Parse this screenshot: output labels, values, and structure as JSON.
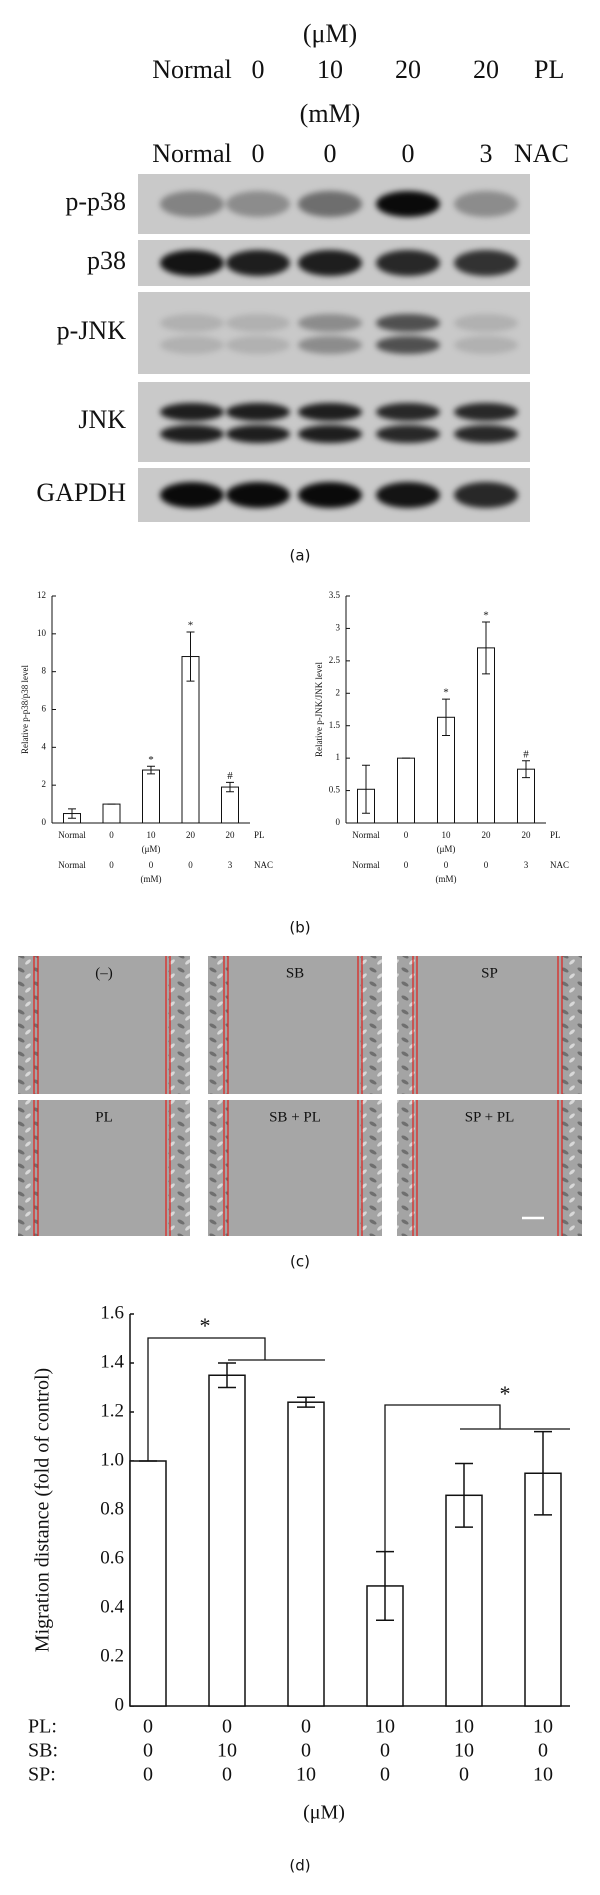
{
  "blot": {
    "unit_top": "(μM)",
    "row1": {
      "labels": [
        "Normal",
        "0",
        "10",
        "20",
        "20"
      ],
      "name": "PL"
    },
    "unit_mid": "(mM)",
    "row2": {
      "labels": [
        "Normal",
        "0",
        "0",
        "0",
        "3"
      ],
      "name": "NAC"
    },
    "proteins": [
      "p-p38",
      "p38",
      "p-JNK",
      "JNK",
      "GAPDH"
    ],
    "caption": "(a)"
  },
  "chart_caption": "(b)",
  "micrographs": {
    "labels": [
      "(–)",
      "SB",
      "SP",
      "PL",
      "SB + PL",
      "SP + PL"
    ],
    "caption": "(c)"
  },
  "chart_data": [
    {
      "type": "bar",
      "ylabel": "Relative p-p38/p38 level",
      "values": [
        0.5,
        1.0,
        2.8,
        8.8,
        1.9
      ],
      "errors": [
        0.25,
        0,
        0.2,
        1.3,
        0.25
      ],
      "markers": [
        null,
        null,
        "*",
        "*",
        "#"
      ],
      "category_rows": [
        {
          "name": "PL",
          "labels": [
            "Normal",
            "0",
            "10",
            "20",
            "20"
          ],
          "unit": "(μM)"
        },
        {
          "name": "NAC",
          "labels": [
            "Normal",
            "0",
            "0",
            "0",
            "3"
          ],
          "unit": "(mM)"
        }
      ],
      "color": "#ffffff",
      "ylim": [
        0,
        12
      ],
      "yticks": [
        0,
        2,
        4,
        6,
        8,
        10,
        12
      ]
    },
    {
      "type": "bar",
      "ylabel": "Relative p-JNK/JNK level",
      "values": [
        0.52,
        1.0,
        1.63,
        2.7,
        0.83
      ],
      "errors": [
        0.37,
        0,
        0.28,
        0.4,
        0.13
      ],
      "markers": [
        null,
        null,
        "*",
        "*",
        "#"
      ],
      "category_rows": [
        {
          "name": "PL",
          "labels": [
            "Normal",
            "0",
            "10",
            "20",
            "20"
          ],
          "unit": "(μM)"
        },
        {
          "name": "NAC",
          "labels": [
            "Normal",
            "0",
            "0",
            "0",
            "3"
          ],
          "unit": "(mM)"
        }
      ],
      "color": "#ffffff",
      "ylim": [
        0,
        3.5
      ],
      "yticks": [
        0,
        0.5,
        1,
        1.5,
        2,
        2.5,
        3,
        3.5
      ]
    },
    {
      "type": "bar",
      "ylabel": "Migration distance (fold of control)",
      "values": [
        1.0,
        1.35,
        1.24,
        0.49,
        0.86,
        0.95
      ],
      "errors": [
        0,
        0.05,
        0.02,
        0.14,
        0.13,
        0.17
      ],
      "markers": [
        null,
        null,
        null,
        null,
        null,
        null
      ],
      "category_rows": [
        {
          "name": "PL:",
          "labels": [
            "0",
            "0",
            "0",
            "10",
            "10",
            "10"
          ]
        },
        {
          "name": "SB:",
          "labels": [
            "0",
            "10",
            "0",
            "0",
            "10",
            "0"
          ]
        },
        {
          "name": "SP:",
          "labels": [
            "0",
            "0",
            "10",
            "0",
            "0",
            "10"
          ]
        }
      ],
      "unit": "(μM)",
      "annotations": [
        "*",
        "*"
      ],
      "caption": "(d)",
      "color": "#ffffff",
      "ylim": [
        0,
        1.6
      ],
      "yticks": [
        0,
        0.2,
        0.4,
        0.6,
        0.8,
        {
          "value": 1,
          "label": "1.0"
        },
        1.2,
        1.4,
        1.6
      ]
    }
  ]
}
